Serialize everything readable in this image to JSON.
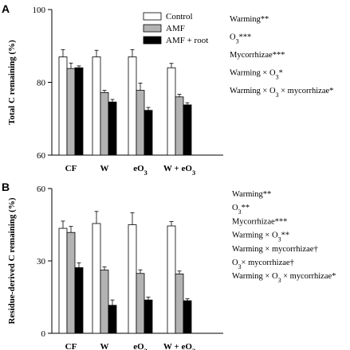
{
  "colors": {
    "control": "#ffffff",
    "amf": "#b3b3b3",
    "amf_root": "#000000",
    "axis": "#000000"
  },
  "chart_data": [
    {
      "panel": "A",
      "type": "bar",
      "ylabel": "Total C remaining (%)",
      "ylim": [
        60,
        100
      ],
      "yticks": [
        "60",
        "80",
        "100"
      ],
      "categories": [
        "CF",
        "W",
        "eO3",
        "W + eO3"
      ],
      "series": [
        {
          "name": "Control",
          "key": "control",
          "values": [
            87,
            87,
            87,
            84
          ],
          "errors": [
            2,
            1.8,
            2,
            1.2
          ]
        },
        {
          "name": "AMF",
          "key": "amf",
          "values": [
            83.8,
            77.2,
            77.8,
            76
          ],
          "errors": [
            1.5,
            0.6,
            2,
            0.7
          ]
        },
        {
          "name": "AMF + root",
          "key": "amf_root",
          "values": [
            84,
            74.6,
            72.3,
            73.8
          ],
          "errors": [
            0.5,
            0.7,
            0.8,
            0.6
          ]
        }
      ],
      "legend": "top-right",
      "annotations": [
        "Warming**",
        "O3***",
        "Mycorrhizae***",
        "Warming × O3*",
        "Warming × O3 × mycorrhizae*"
      ]
    },
    {
      "panel": "B",
      "type": "bar",
      "ylabel": "Residue-derived C remaining (%)",
      "ylim": [
        0,
        60
      ],
      "yticks": [
        "0",
        "30",
        "60"
      ],
      "categories": [
        "CF",
        "W",
        "eO3",
        "W + eO3"
      ],
      "series": [
        {
          "name": "Control",
          "key": "control",
          "values": [
            43.5,
            45.5,
            45,
            44.5
          ],
          "errors": [
            3,
            5,
            5,
            1.8
          ]
        },
        {
          "name": "AMF",
          "key": "amf",
          "values": [
            41.8,
            26.2,
            24.8,
            24.6
          ],
          "errors": [
            2.5,
            1.3,
            1.5,
            1.2
          ]
        },
        {
          "name": "AMF + root",
          "key": "amf_root",
          "values": [
            27.2,
            11.6,
            13.8,
            13.5
          ],
          "errors": [
            2,
            2.2,
            1.2,
            0.8
          ]
        }
      ],
      "annotations": [
        "Warming**",
        "O3**",
        "Mycorrhizae***",
        "Warming × O3**",
        "Warming × mycorrhizae†",
        "O3× mycorrhizae†",
        "Warming × O3 × mycorrhizae*"
      ]
    }
  ]
}
